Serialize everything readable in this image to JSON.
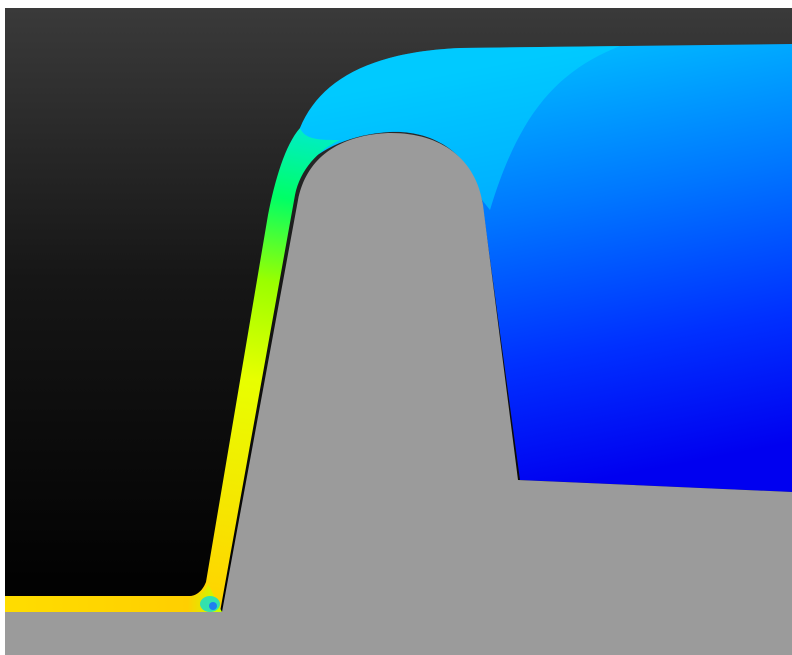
{
  "scene": {
    "frame_color": "#ffffff",
    "background_top_color": "#3a3a3a",
    "background_bottom_color": "#000000",
    "die_color": "#9b9b9b",
    "colormap": [
      "#0000ff",
      "#0066ff",
      "#00e5ff",
      "#00ff55",
      "#ffff00",
      "#ffcc00"
    ]
  }
}
